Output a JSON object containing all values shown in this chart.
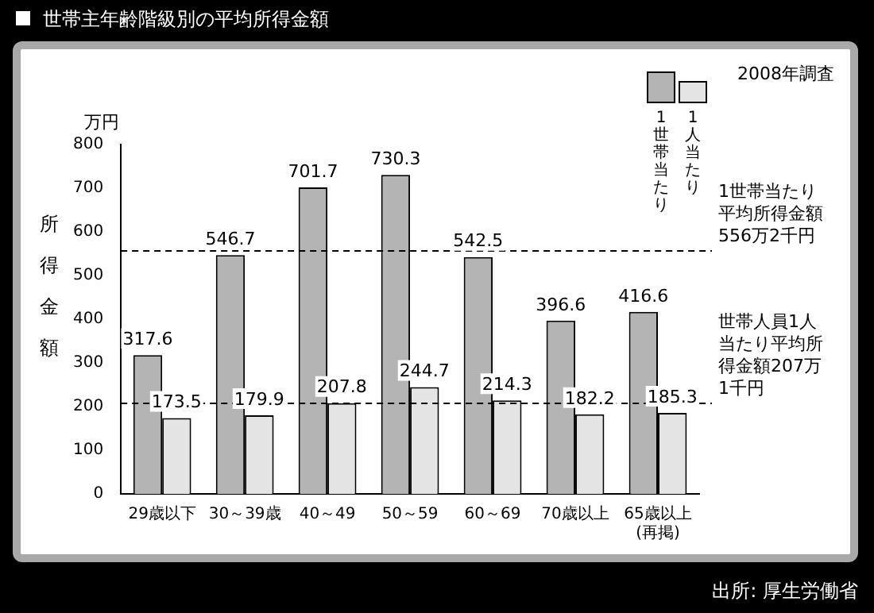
{
  "chart_data": {
    "type": "bar",
    "title": "世帯主年齢階級別の平均所得金額",
    "ylabel": "所得金額",
    "categories": [
      "29歳以下",
      "30～39歳",
      "40～49",
      "50～59",
      "60～69",
      "70歳以上",
      "65歳以上\n(再掲)"
    ],
    "series": [
      {
        "name": "1世帯当たり",
        "color": "#b4b4b4",
        "values": [
          317.6,
          546.7,
          701.7,
          730.3,
          542.5,
          396.6,
          416.6
        ]
      },
      {
        "name": "1人当たり",
        "color": "#e4e4e4",
        "values": [
          173.5,
          179.9,
          207.8,
          244.7,
          214.3,
          182.2,
          185.3
        ]
      }
    ],
    "ylim": [
      0,
      800
    ],
    "yticks": [
      0,
      100,
      200,
      300,
      400,
      500,
      600,
      700,
      800
    ],
    "grid": false,
    "legend": "top right",
    "data_labels": true,
    "ref_lines": [
      {
        "axis": "y",
        "value": 556.2,
        "label": "1世帯当たり平均所得金額556万2千円",
        "line_style": "dashed"
      },
      {
        "axis": "y",
        "value": 207.1,
        "label": "世帯人員1人当たり平均所得金額207万1千円",
        "line_style": "dashed"
      }
    ],
    "annotations": [
      "万円",
      "2008年調査",
      "出所: 厚生労働省"
    ]
  }
}
